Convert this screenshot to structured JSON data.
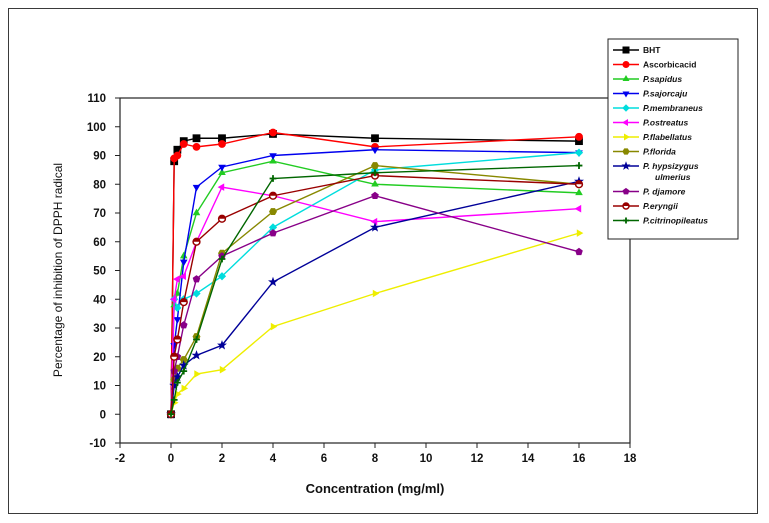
{
  "chart_data": {
    "type": "line",
    "xlabel": "Concentration (mg/ml)",
    "ylabel": "Percentage of inhibition of DPPH radical",
    "xlim": [
      -2,
      18
    ],
    "ylim": [
      -10,
      110
    ],
    "xticks": [
      "-2",
      "0",
      "2",
      "4",
      "6",
      "8",
      "10",
      "12",
      "14",
      "16",
      "18"
    ],
    "yticks": [
      "-10",
      "0",
      "10",
      "20",
      "30",
      "40",
      "50",
      "60",
      "70",
      "80",
      "90",
      "100",
      "110"
    ],
    "legend_position": "top-right",
    "x": [
      0,
      0.125,
      0.25,
      0.5,
      1,
      2,
      4,
      8,
      16
    ],
    "series": [
      {
        "name": "BHT",
        "color": "#000000",
        "marker": "square",
        "values": [
          0,
          88,
          92,
          95,
          96,
          96,
          97.5,
          96,
          95
        ]
      },
      {
        "name": "Ascorbicacid",
        "color": "#ff0000",
        "marker": "circle",
        "values": [
          0,
          89,
          90,
          94,
          93,
          94,
          98,
          93,
          96.5
        ]
      },
      {
        "name": "P.sapidus",
        "color": "#22cc22",
        "marker": "triangle-up",
        "values": [
          0,
          38,
          42,
          55,
          70,
          84,
          88,
          80,
          77
        ]
      },
      {
        "name": "P.sajorcaju",
        "color": "#0000ee",
        "marker": "triangle-down",
        "values": [
          0,
          24,
          33,
          53,
          79,
          86,
          90,
          92,
          91
        ]
      },
      {
        "name": "P.membraneus",
        "color": "#00dddd",
        "marker": "diamond",
        "values": [
          0,
          40,
          37,
          40,
          42,
          48,
          65,
          85,
          91
        ]
      },
      {
        "name": "P.ostreatus",
        "color": "#ff00ff",
        "marker": "triangle-left",
        "values": [
          0,
          40,
          47,
          48,
          60,
          79,
          76,
          67,
          71.5
        ]
      },
      {
        "name": "P.flabellatus",
        "color": "#eeee00",
        "marker": "triangle-right",
        "values": [
          0,
          4,
          7,
          9,
          14,
          15.5,
          30.5,
          42,
          63
        ]
      },
      {
        "name": "P.florida",
        "color": "#888800",
        "marker": "hexagon",
        "values": [
          0,
          12,
          16,
          19,
          27,
          56,
          70.5,
          86.5,
          80
        ]
      },
      {
        "name": "P. hypsizygus ulmerius",
        "color": "#000099",
        "marker": "star",
        "values": [
          0,
          10,
          13,
          17,
          20.5,
          24,
          46,
          65,
          81
        ]
      },
      {
        "name": "P. djamore",
        "color": "#880088",
        "marker": "pentagon",
        "values": [
          0,
          15,
          20,
          31,
          47,
          55,
          63,
          76,
          56.5
        ]
      },
      {
        "name": "P.eryngii",
        "color": "#990000",
        "marker": "circle-half",
        "values": [
          0,
          20,
          26,
          39,
          60,
          68,
          76,
          83,
          80
        ]
      },
      {
        "name": "P.citrinopileatus",
        "color": "#006600",
        "marker": "plus",
        "values": [
          0,
          5,
          11,
          15,
          26,
          54,
          82,
          84,
          86.5
        ]
      }
    ]
  }
}
